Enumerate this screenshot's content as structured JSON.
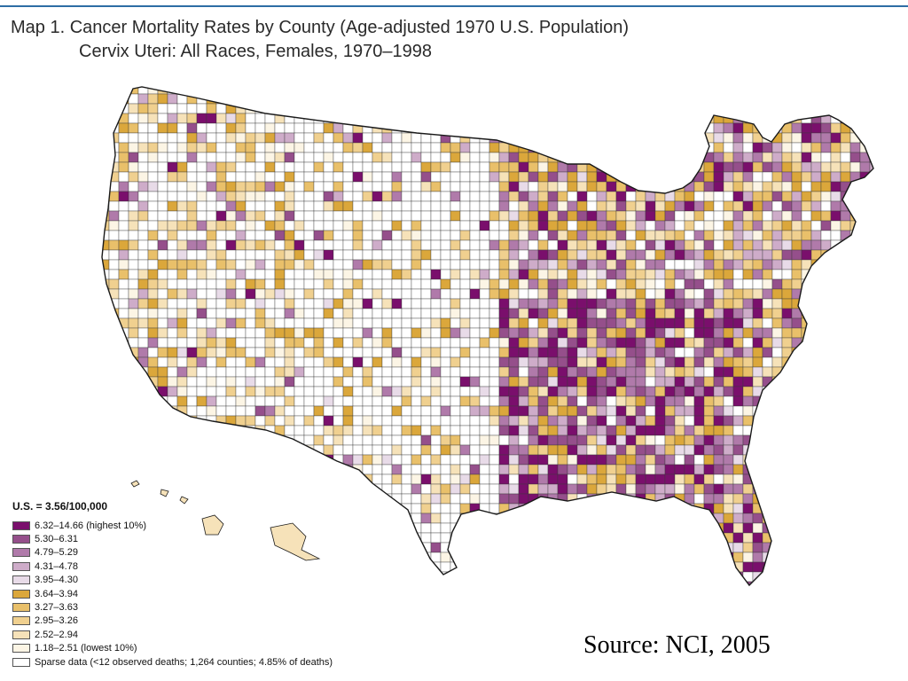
{
  "title_line1": "Map 1. Cancer Mortality Rates by County (Age-adjusted 1970 U.S. Population)",
  "title_line2": "Cervix Uteri: All Races, Females, 1970–1998",
  "legend": {
    "us_rate": "U.S. = 3.56/100,000",
    "classes": [
      {
        "label": "6.32–14.66 (highest 10%)",
        "color": "#7a0f6c"
      },
      {
        "label": "5.30–6.31",
        "color": "#954f8b"
      },
      {
        "label": "4.79–5.29",
        "color": "#b07aaa"
      },
      {
        "label": "4.31–4.78",
        "color": "#ceacc9"
      },
      {
        "label": "3.95–4.30",
        "color": "#e8dbe8"
      },
      {
        "label": "3.64–3.94",
        "color": "#dba73b"
      },
      {
        "label": "3.27–3.63",
        "color": "#e9c06a"
      },
      {
        "label": "2.95–3.26",
        "color": "#f0d08f"
      },
      {
        "label": "2.52–2.94",
        "color": "#f6e2b9"
      },
      {
        "label": "1.18–2.51 (lowest 10%)",
        "color": "#fcf5e5"
      },
      {
        "label": "Sparse data (<12 observed deaths; 1,264 counties; 4.85% of deaths)",
        "color": "#ffffff"
      }
    ]
  },
  "source": "Source: NCI, 2005",
  "colors": {
    "border": "#1a1a1a",
    "county_line": "#3a3a3a"
  }
}
